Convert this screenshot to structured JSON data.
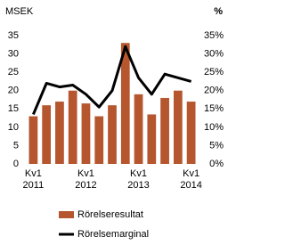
{
  "chart_data": {
    "type": "bar+line",
    "y_label": "MSEK",
    "y2_label": "%",
    "categories": [
      "Kv1 2011",
      null,
      null,
      null,
      "Kv1 2012",
      null,
      null,
      null,
      "Kv1 2013",
      null,
      null,
      null,
      "Kv1 2014"
    ],
    "series": [
      {
        "name": "Rörelseresultat",
        "type": "bar",
        "color": "#b5562f",
        "values": [
          13,
          16,
          17,
          20,
          16.5,
          13,
          16,
          33,
          19,
          13.5,
          18,
          20,
          17
        ]
      },
      {
        "name": "Rörelsemarginal",
        "type": "line",
        "color": "#000000",
        "axis": "y2",
        "values": [
          13.5,
          22,
          21,
          21.5,
          19,
          15.5,
          20,
          32,
          23.5,
          19,
          24.5,
          23.5,
          22.5
        ]
      }
    ],
    "ylim": [
      0,
      35
    ],
    "yticks": [
      0,
      5,
      10,
      15,
      20,
      25,
      30,
      35
    ],
    "y2lim": [
      0,
      35
    ],
    "y2ticks": [
      {
        "value": 0,
        "label": "0%"
      },
      {
        "value": 5,
        "label": "5%"
      },
      {
        "value": 10,
        "label": "10%"
      },
      {
        "value": 15,
        "label": "15%"
      },
      {
        "value": 20,
        "label": "20%"
      },
      {
        "value": 25,
        "label": "25%"
      },
      {
        "value": 30,
        "label": "30%"
      },
      {
        "value": 35,
        "label": "35%"
      }
    ],
    "grid": false
  }
}
